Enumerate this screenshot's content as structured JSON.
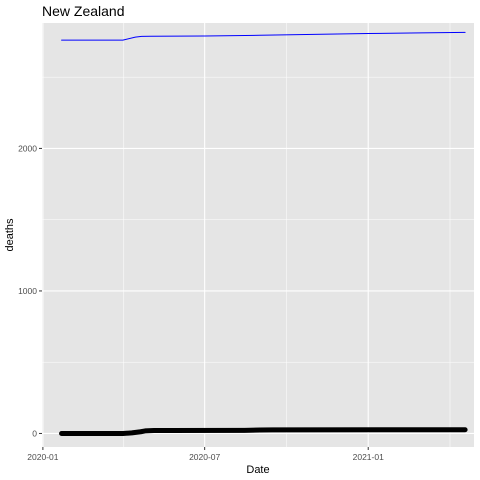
{
  "chart_data": {
    "type": "line",
    "title": "New Zealand",
    "xlabel": "Date",
    "ylabel": "deaths",
    "x_axis_kind": "date",
    "xlim": [
      "2019-12-31",
      "2021-04-30"
    ],
    "ylim": [
      -95,
      2880
    ],
    "x_ticks": [
      "2020-01-01",
      "2020-07-01",
      "2021-01-01"
    ],
    "x_tick_labels": [
      "2020-01",
      "2020-07",
      "2021-01"
    ],
    "y_ticks": [
      0,
      1000,
      2000
    ],
    "y_tick_labels": [
      "0",
      "1000",
      "2000"
    ],
    "grid": true,
    "legend": "none",
    "colors": {
      "panel_bg": "#e5e5e5",
      "grid": "#ffffff"
    },
    "series": [
      {
        "color": "#0000ff",
        "line_style": "thin",
        "points": [
          {
            "x": "2020-01-22",
            "y": 2760
          },
          {
            "x": "2020-03-31",
            "y": 2760
          },
          {
            "x": "2020-04-14",
            "y": 2781
          },
          {
            "x": "2020-04-21",
            "y": 2786
          },
          {
            "x": "2020-05-01",
            "y": 2787
          },
          {
            "x": "2020-07-01",
            "y": 2789
          },
          {
            "x": "2020-09-01",
            "y": 2794
          },
          {
            "x": "2020-11-01",
            "y": 2800
          },
          {
            "x": "2021-01-01",
            "y": 2806
          },
          {
            "x": "2021-03-01",
            "y": 2811
          },
          {
            "x": "2021-04-20",
            "y": 2814
          }
        ]
      },
      {
        "color": "#000000",
        "line_style": "thick",
        "points": [
          {
            "x": "2020-01-22",
            "y": 0
          },
          {
            "x": "2020-03-31",
            "y": 0
          },
          {
            "x": "2020-04-10",
            "y": 4
          },
          {
            "x": "2020-04-20",
            "y": 12
          },
          {
            "x": "2020-04-25",
            "y": 18
          },
          {
            "x": "2020-05-05",
            "y": 21
          },
          {
            "x": "2020-05-25",
            "y": 21
          },
          {
            "x": "2020-08-15",
            "y": 22
          },
          {
            "x": "2020-09-01",
            "y": 24
          },
          {
            "x": "2020-09-15",
            "y": 25
          },
          {
            "x": "2021-02-16",
            "y": 26
          },
          {
            "x": "2021-04-20",
            "y": 26
          }
        ]
      }
    ]
  }
}
